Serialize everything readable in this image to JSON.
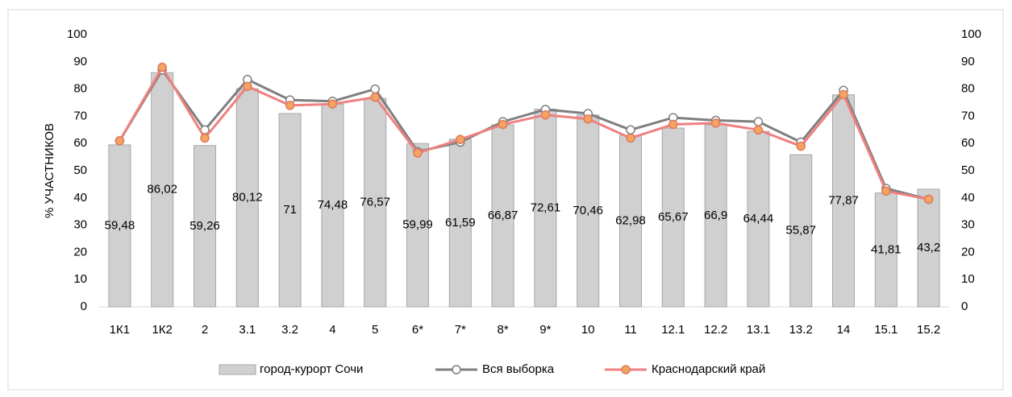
{
  "chart_data": {
    "type": "bar",
    "y_axis_label": "% УЧАСТНИКОВ",
    "categories": [
      "1К1",
      "1К2",
      "2",
      "3.1",
      "3.2",
      "4",
      "5",
      "6*",
      "7*",
      "8*",
      "9*",
      "10",
      "11",
      "12.1",
      "12.2",
      "13.1",
      "13.2",
      "14",
      "15.1",
      "15.2"
    ],
    "ylim": [
      0,
      100
    ],
    "yticks": [
      0,
      10,
      20,
      30,
      40,
      50,
      60,
      70,
      80,
      90,
      100
    ],
    "y2lim": [
      0,
      100
    ],
    "y2ticks": [
      0,
      10,
      20,
      30,
      40,
      50,
      60,
      70,
      80,
      90,
      100
    ],
    "legend": "bottom",
    "series": [
      {
        "name": "город-курорт Сочи",
        "type": "bar",
        "color": "#d0d0d0",
        "values": [
          59.48,
          86.02,
          59.26,
          80.12,
          71,
          74.48,
          76.57,
          59.99,
          61.59,
          66.87,
          72.61,
          70.46,
          62.98,
          65.67,
          66.9,
          64.44,
          55.87,
          77.87,
          41.81,
          43.2
        ],
        "value_labels": [
          "59,48",
          "86,02",
          "59,26",
          "80,12",
          "71",
          "74,48",
          "76,57",
          "59,99",
          "61,59",
          "66,87",
          "72,61",
          "70,46",
          "62,98",
          "65,67",
          "66,9",
          "64,44",
          "55,87",
          "77,87",
          "41,81",
          "43,2"
        ]
      },
      {
        "name": "Вся выборка",
        "type": "line",
        "axis": "y2",
        "color": "#7f7f7f",
        "values": [
          61,
          87,
          65,
          83.5,
          76,
          75.5,
          80,
          57,
          60.5,
          68,
          72.5,
          71,
          65,
          69.5,
          68.5,
          68,
          60.5,
          79.5,
          43.5,
          39.5
        ]
      },
      {
        "name": "Краснодарский край",
        "type": "line",
        "axis": "y2",
        "color": "#f08080",
        "values": [
          61,
          88,
          62,
          81,
          74,
          74.5,
          77,
          56.5,
          61.5,
          67,
          70.5,
          69,
          62,
          67,
          67.5,
          65,
          59,
          78,
          42.5,
          39.5
        ]
      }
    ]
  }
}
